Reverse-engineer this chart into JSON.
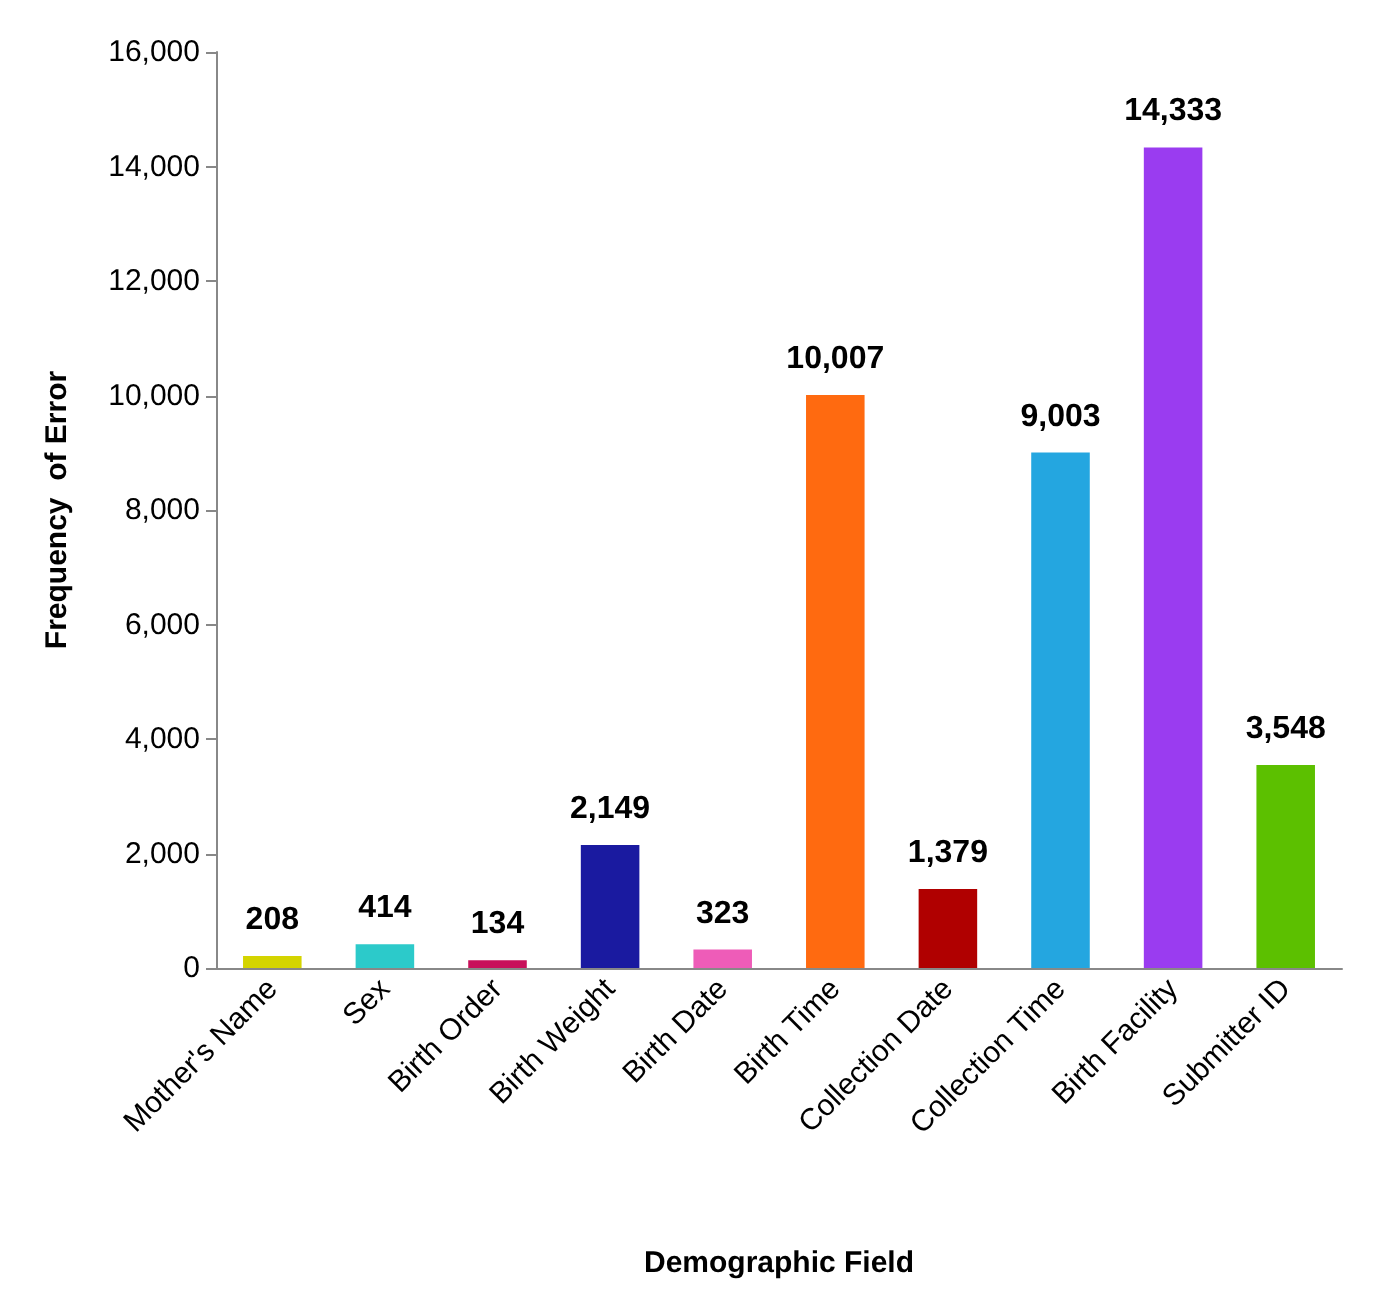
{
  "chart_data": {
    "type": "bar",
    "xlabel": "Demographic Field",
    "ylabel": "Frequency  of Error",
    "categories": [
      "Mother's Name",
      "Sex",
      "Birth Order",
      "Birth Weight",
      "Birth Date",
      "Birth Time",
      "Collection Date",
      "Collection Time",
      "Birth Facility",
      "Submitter ID"
    ],
    "values": [
      208,
      414,
      134,
      2149,
      323,
      10007,
      1379,
      9003,
      14333,
      3548
    ],
    "value_labels": [
      "208",
      "414",
      "134",
      "2,149",
      "323",
      "10,007",
      "1,379",
      "9,003",
      "14,333",
      "3,548"
    ],
    "colors": [
      "#d4d400",
      "#2ccaca",
      "#c8105a",
      "#1a1aa0",
      "#ee5cb8",
      "#ff6a10",
      "#b00000",
      "#24a6e0",
      "#9a3cf0",
      "#5cc000"
    ],
    "ylim": [
      0,
      16000
    ],
    "yticks": [
      0,
      {
        "value": 2000,
        "label": "2,000"
      },
      {
        "value": 4000,
        "label": "4,000"
      },
      {
        "value": 6000,
        "label": "6,000"
      },
      {
        "value": 8000,
        "label": "8,000"
      },
      {
        "value": 10000,
        "label": "10,000"
      },
      {
        "value": 12000,
        "label": "12,000"
      },
      {
        "value": 14000,
        "label": "14,000"
      },
      {
        "value": 16000,
        "label": "16,000"
      }
    ],
    "grid": false
  }
}
